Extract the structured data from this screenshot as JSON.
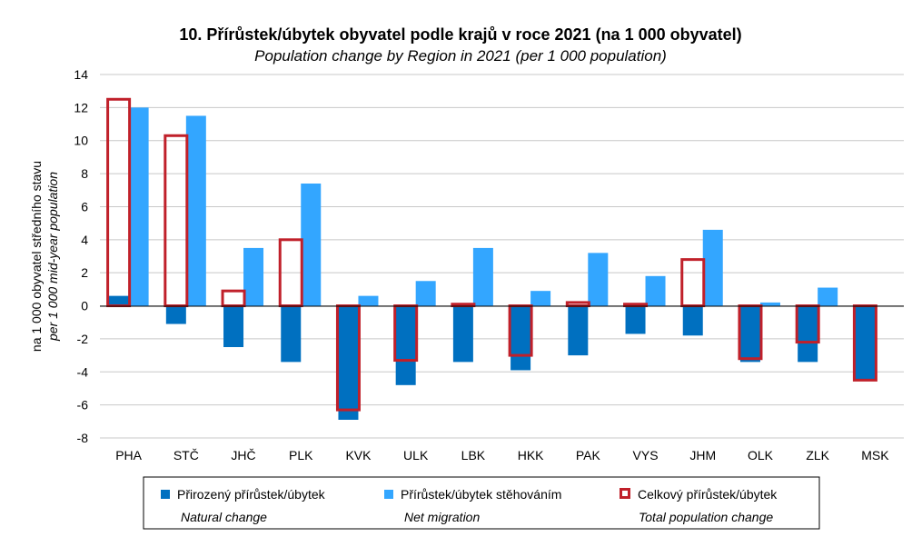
{
  "chart_data": {
    "type": "bar",
    "title": "10. Přírůstek/úbytek obyvatel podle krajů v roce 2021 (na 1 000 obyvatel)",
    "subtitle": "Population change by Region in 2021 (per 1 000 population)",
    "ylabel": "na 1 000 obyvatel středního stavu",
    "ylabel_en": "per 1 000 mid-year population",
    "xlabel": "",
    "ylim": [
      -8,
      14
    ],
    "yticks": [
      -8,
      -6,
      -4,
      -2,
      0,
      2,
      4,
      6,
      8,
      10,
      12,
      14
    ],
    "grid": true,
    "legend_position": "bottom",
    "categories": [
      "PHA",
      "STČ",
      "JHČ",
      "PLK",
      "KVK",
      "ULK",
      "LBK",
      "HKK",
      "PAK",
      "VYS",
      "JHM",
      "OLK",
      "ZLK",
      "MSK"
    ],
    "series": [
      {
        "name": "Přirozený přírůstek/úbytek",
        "name_en": "Natural change",
        "color": "#0070c0",
        "style": "filled-bar",
        "values": [
          0.6,
          -1.1,
          -2.5,
          -3.4,
          -6.9,
          -4.8,
          -3.4,
          -3.9,
          -3.0,
          -1.7,
          -1.8,
          -3.4,
          -3.4,
          -4.5
        ]
      },
      {
        "name": "Přírůstek/úbytek stěhováním",
        "name_en": "Net migration",
        "color": "#33a6ff",
        "style": "filled-bar",
        "values": [
          12.0,
          11.5,
          3.5,
          7.4,
          0.6,
          1.5,
          3.5,
          0.9,
          3.2,
          1.8,
          4.6,
          0.2,
          1.1,
          0.0
        ]
      },
      {
        "name": "Celkový přírůstek/úbytek",
        "name_en": "Total population change",
        "color": "#c0202a",
        "style": "outline-bar",
        "values": [
          12.5,
          10.3,
          0.9,
          4.0,
          -6.3,
          -3.3,
          0.1,
          -3.0,
          0.2,
          0.1,
          2.8,
          -3.2,
          -2.2,
          -4.5
        ]
      }
    ]
  }
}
